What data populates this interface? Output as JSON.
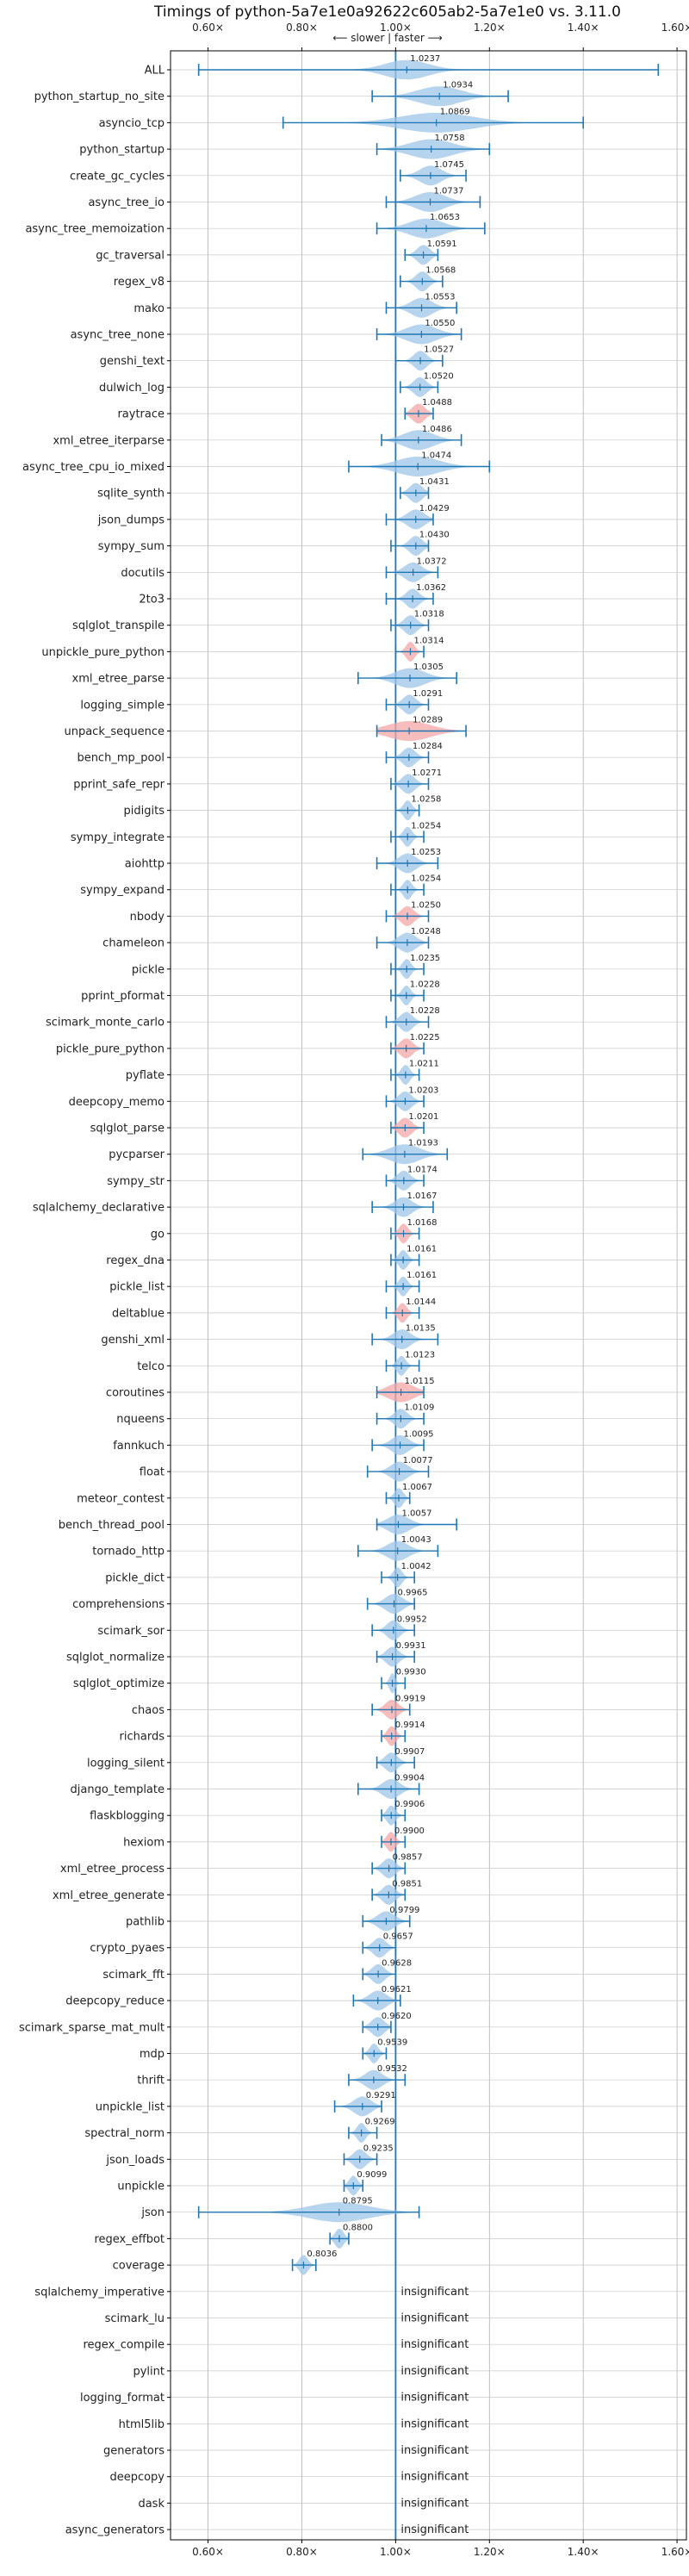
{
  "chart_data": {
    "type": "violin",
    "title": "Timings of python-5a7e1e0a92622c605ab2-5a7e1e0 vs. 3.11.0",
    "direction_label": "⟵ slower | faster ⟶",
    "xlim": [
      0.52,
      1.62
    ],
    "x_ticks": [
      "0.60×",
      "0.80×",
      "1.00×",
      "1.20×",
      "1.40×",
      "1.60×"
    ],
    "x_tick_values": [
      0.6,
      0.8,
      1.0,
      1.2,
      1.4,
      1.6
    ],
    "grid": true,
    "colors": {
      "normal": "#9fc5e8",
      "significant_slower": "#f4a6a6",
      "line": "#1f77b4"
    },
    "series": [
      {
        "name": "ALL",
        "value": 1.0237,
        "label": "1.0237",
        "min": 0.58,
        "max": 1.56,
        "spread": 0.1,
        "highlight": false
      },
      {
        "name": "python_startup_no_site",
        "value": 1.0934,
        "label": "1.0934",
        "min": 0.95,
        "max": 1.24,
        "spread": 0.1,
        "highlight": false
      },
      {
        "name": "asyncio_tcp",
        "value": 1.0869,
        "label": "1.0869",
        "min": 0.76,
        "max": 1.4,
        "spread": 0.17,
        "highlight": false
      },
      {
        "name": "python_startup",
        "value": 1.0758,
        "label": "1.0758",
        "min": 0.96,
        "max": 1.2,
        "spread": 0.1,
        "highlight": false
      },
      {
        "name": "create_gc_cycles",
        "value": 1.0745,
        "label": "1.0745",
        "min": 1.01,
        "max": 1.15,
        "spread": 0.05,
        "highlight": false
      },
      {
        "name": "async_tree_io",
        "value": 1.0737,
        "label": "1.0737",
        "min": 0.98,
        "max": 1.18,
        "spread": 0.07,
        "highlight": false
      },
      {
        "name": "async_tree_memoization",
        "value": 1.0653,
        "label": "1.0653",
        "min": 0.96,
        "max": 1.19,
        "spread": 0.08,
        "highlight": false
      },
      {
        "name": "gc_traversal",
        "value": 1.0591,
        "label": "1.0591",
        "min": 1.02,
        "max": 1.09,
        "spread": 0.03,
        "highlight": false
      },
      {
        "name": "regex_v8",
        "value": 1.0568,
        "label": "1.0568",
        "min": 1.01,
        "max": 1.1,
        "spread": 0.03,
        "highlight": false
      },
      {
        "name": "mako",
        "value": 1.0553,
        "label": "1.0553",
        "min": 0.98,
        "max": 1.13,
        "spread": 0.05,
        "highlight": false
      },
      {
        "name": "async_tree_none",
        "value": 1.055,
        "label": "1.0550",
        "min": 0.96,
        "max": 1.14,
        "spread": 0.07,
        "highlight": false
      },
      {
        "name": "genshi_text",
        "value": 1.0527,
        "label": "1.0527",
        "min": 1.0,
        "max": 1.1,
        "spread": 0.03,
        "highlight": false
      },
      {
        "name": "dulwich_log",
        "value": 1.052,
        "label": "1.0520",
        "min": 1.01,
        "max": 1.09,
        "spread": 0.03,
        "highlight": false
      },
      {
        "name": "raytrace",
        "value": 1.0488,
        "label": "1.0488",
        "min": 1.02,
        "max": 1.08,
        "spread": 0.03,
        "highlight": true
      },
      {
        "name": "xml_etree_iterparse",
        "value": 1.0486,
        "label": "1.0486",
        "min": 0.97,
        "max": 1.14,
        "spread": 0.07,
        "highlight": false
      },
      {
        "name": "async_tree_cpu_io_mixed",
        "value": 1.0474,
        "label": "1.0474",
        "min": 0.9,
        "max": 1.2,
        "spread": 0.1,
        "highlight": false
      },
      {
        "name": "sqlite_synth",
        "value": 1.0431,
        "label": "1.0431",
        "min": 1.01,
        "max": 1.07,
        "spread": 0.03,
        "highlight": false
      },
      {
        "name": "json_dumps",
        "value": 1.0429,
        "label": "1.0429",
        "min": 0.98,
        "max": 1.08,
        "spread": 0.04,
        "highlight": false
      },
      {
        "name": "sympy_sum",
        "value": 1.043,
        "label": "1.0430",
        "min": 0.99,
        "max": 1.07,
        "spread": 0.03,
        "highlight": false
      },
      {
        "name": "docutils",
        "value": 1.0372,
        "label": "1.0372",
        "min": 0.98,
        "max": 1.09,
        "spread": 0.04,
        "highlight": false
      },
      {
        "name": "2to3",
        "value": 1.0362,
        "label": "1.0362",
        "min": 0.98,
        "max": 1.08,
        "spread": 0.03,
        "highlight": false
      },
      {
        "name": "sqlglot_transpile",
        "value": 1.0318,
        "label": "1.0318",
        "min": 0.99,
        "max": 1.07,
        "spread": 0.03,
        "highlight": false
      },
      {
        "name": "unpickle_pure_python",
        "value": 1.0314,
        "label": "1.0314",
        "min": 1.0,
        "max": 1.06,
        "spread": 0.02,
        "highlight": true
      },
      {
        "name": "xml_etree_parse",
        "value": 1.0305,
        "label": "1.0305",
        "min": 0.92,
        "max": 1.13,
        "spread": 0.07,
        "highlight": false
      },
      {
        "name": "logging_simple",
        "value": 1.0291,
        "label": "1.0291",
        "min": 0.98,
        "max": 1.07,
        "spread": 0.03,
        "highlight": false
      },
      {
        "name": "unpack_sequence",
        "value": 1.0289,
        "label": "1.0289",
        "min": 0.96,
        "max": 1.15,
        "spread": 0.1,
        "highlight": true
      },
      {
        "name": "bench_mp_pool",
        "value": 1.0284,
        "label": "1.0284",
        "min": 0.98,
        "max": 1.07,
        "spread": 0.03,
        "highlight": false
      },
      {
        "name": "pprint_safe_repr",
        "value": 1.0271,
        "label": "1.0271",
        "min": 0.99,
        "max": 1.07,
        "spread": 0.03,
        "highlight": false
      },
      {
        "name": "pidigits",
        "value": 1.0258,
        "label": "1.0258",
        "min": 1.0,
        "max": 1.05,
        "spread": 0.02,
        "highlight": false
      },
      {
        "name": "sympy_integrate",
        "value": 1.0254,
        "label": "1.0254",
        "min": 0.99,
        "max": 1.06,
        "spread": 0.02,
        "highlight": false
      },
      {
        "name": "aiohttp",
        "value": 1.0253,
        "label": "1.0253",
        "min": 0.96,
        "max": 1.09,
        "spread": 0.04,
        "highlight": false
      },
      {
        "name": "sympy_expand",
        "value": 1.0254,
        "label": "1.0254",
        "min": 0.99,
        "max": 1.06,
        "spread": 0.02,
        "highlight": false
      },
      {
        "name": "nbody",
        "value": 1.025,
        "label": "1.0250",
        "min": 0.98,
        "max": 1.07,
        "spread": 0.03,
        "highlight": true
      },
      {
        "name": "chameleon",
        "value": 1.0248,
        "label": "1.0248",
        "min": 0.96,
        "max": 1.07,
        "spread": 0.04,
        "highlight": false
      },
      {
        "name": "pickle",
        "value": 1.0235,
        "label": "1.0235",
        "min": 0.99,
        "max": 1.06,
        "spread": 0.02,
        "highlight": false
      },
      {
        "name": "pprint_pformat",
        "value": 1.0228,
        "label": "1.0228",
        "min": 0.99,
        "max": 1.06,
        "spread": 0.02,
        "highlight": false
      },
      {
        "name": "scimark_monte_carlo",
        "value": 1.0228,
        "label": "1.0228",
        "min": 0.98,
        "max": 1.07,
        "spread": 0.03,
        "highlight": false
      },
      {
        "name": "pickle_pure_python",
        "value": 1.0225,
        "label": "1.0225",
        "min": 0.99,
        "max": 1.06,
        "spread": 0.03,
        "highlight": true
      },
      {
        "name": "pyflate",
        "value": 1.0211,
        "label": "1.0211",
        "min": 0.99,
        "max": 1.05,
        "spread": 0.02,
        "highlight": false
      },
      {
        "name": "deepcopy_memo",
        "value": 1.0203,
        "label": "1.0203",
        "min": 0.98,
        "max": 1.06,
        "spread": 0.03,
        "highlight": false
      },
      {
        "name": "sqlglot_parse",
        "value": 1.0201,
        "label": "1.0201",
        "min": 0.99,
        "max": 1.06,
        "spread": 0.03,
        "highlight": true
      },
      {
        "name": "pycparser",
        "value": 1.0193,
        "label": "1.0193",
        "min": 0.93,
        "max": 1.11,
        "spread": 0.07,
        "highlight": false
      },
      {
        "name": "sympy_str",
        "value": 1.0174,
        "label": "1.0174",
        "min": 0.98,
        "max": 1.06,
        "spread": 0.03,
        "highlight": false
      },
      {
        "name": "sqlalchemy_declarative",
        "value": 1.0167,
        "label": "1.0167",
        "min": 0.95,
        "max": 1.08,
        "spread": 0.04,
        "highlight": false
      },
      {
        "name": "go",
        "value": 1.0168,
        "label": "1.0168",
        "min": 0.99,
        "max": 1.05,
        "spread": 0.02,
        "highlight": true
      },
      {
        "name": "regex_dna",
        "value": 1.0161,
        "label": "1.0161",
        "min": 0.99,
        "max": 1.05,
        "spread": 0.02,
        "highlight": false
      },
      {
        "name": "pickle_list",
        "value": 1.0161,
        "label": "1.0161",
        "min": 0.98,
        "max": 1.05,
        "spread": 0.02,
        "highlight": false
      },
      {
        "name": "deltablue",
        "value": 1.0144,
        "label": "1.0144",
        "min": 0.98,
        "max": 1.05,
        "spread": 0.02,
        "highlight": true
      },
      {
        "name": "genshi_xml",
        "value": 1.0135,
        "label": "1.0135",
        "min": 0.95,
        "max": 1.09,
        "spread": 0.04,
        "highlight": false
      },
      {
        "name": "telco",
        "value": 1.0123,
        "label": "1.0123",
        "min": 0.98,
        "max": 1.05,
        "spread": 0.02,
        "highlight": false
      },
      {
        "name": "coroutines",
        "value": 1.0115,
        "label": "1.0115",
        "min": 0.96,
        "max": 1.06,
        "spread": 0.06,
        "highlight": true
      },
      {
        "name": "nqueens",
        "value": 1.0109,
        "label": "1.0109",
        "min": 0.96,
        "max": 1.06,
        "spread": 0.03,
        "highlight": false
      },
      {
        "name": "fannkuch",
        "value": 1.0095,
        "label": "1.0095",
        "min": 0.95,
        "max": 1.06,
        "spread": 0.04,
        "highlight": false
      },
      {
        "name": "float",
        "value": 1.0077,
        "label": "1.0077",
        "min": 0.94,
        "max": 1.07,
        "spread": 0.04,
        "highlight": false
      },
      {
        "name": "meteor_contest",
        "value": 1.0067,
        "label": "1.0067",
        "min": 0.98,
        "max": 1.03,
        "spread": 0.02,
        "highlight": false
      },
      {
        "name": "bench_thread_pool",
        "value": 1.0057,
        "label": "1.0057",
        "min": 0.96,
        "max": 1.13,
        "spread": 0.05,
        "highlight": false
      },
      {
        "name": "tornado_http",
        "value": 1.0043,
        "label": "1.0043",
        "min": 0.92,
        "max": 1.09,
        "spread": 0.05,
        "highlight": false
      },
      {
        "name": "pickle_dict",
        "value": 1.0042,
        "label": "1.0042",
        "min": 0.97,
        "max": 1.04,
        "spread": 0.02,
        "highlight": false
      },
      {
        "name": "comprehensions",
        "value": 0.9965,
        "label": "0.9965",
        "min": 0.94,
        "max": 1.04,
        "spread": 0.04,
        "highlight": false
      },
      {
        "name": "scimark_sor",
        "value": 0.9952,
        "label": "0.9952",
        "min": 0.95,
        "max": 1.04,
        "spread": 0.03,
        "highlight": false
      },
      {
        "name": "sqlglot_normalize",
        "value": 0.9931,
        "label": "0.9931",
        "min": 0.96,
        "max": 1.04,
        "spread": 0.03,
        "highlight": false
      },
      {
        "name": "sqlglot_optimize",
        "value": 0.993,
        "label": "0.9930",
        "min": 0.97,
        "max": 1.02,
        "spread": 0.01,
        "highlight": false
      },
      {
        "name": "chaos",
        "value": 0.9919,
        "label": "0.9919",
        "min": 0.95,
        "max": 1.03,
        "spread": 0.03,
        "highlight": true
      },
      {
        "name": "richards",
        "value": 0.9914,
        "label": "0.9914",
        "min": 0.97,
        "max": 1.02,
        "spread": 0.02,
        "highlight": true
      },
      {
        "name": "logging_silent",
        "value": 0.9907,
        "label": "0.9907",
        "min": 0.96,
        "max": 1.04,
        "spread": 0.03,
        "highlight": false
      },
      {
        "name": "django_template",
        "value": 0.9904,
        "label": "0.9904",
        "min": 0.92,
        "max": 1.05,
        "spread": 0.04,
        "highlight": false
      },
      {
        "name": "flaskblogging",
        "value": 0.9906,
        "label": "0.9906",
        "min": 0.97,
        "max": 1.02,
        "spread": 0.02,
        "highlight": false
      },
      {
        "name": "hexiom",
        "value": 0.99,
        "label": "0.9900",
        "min": 0.97,
        "max": 1.02,
        "spread": 0.02,
        "highlight": true
      },
      {
        "name": "xml_etree_process",
        "value": 0.9857,
        "label": "0.9857",
        "min": 0.95,
        "max": 1.02,
        "spread": 0.03,
        "highlight": false
      },
      {
        "name": "xml_etree_generate",
        "value": 0.9851,
        "label": "0.9851",
        "min": 0.95,
        "max": 1.02,
        "spread": 0.03,
        "highlight": false
      },
      {
        "name": "pathlib",
        "value": 0.9799,
        "label": "0.9799",
        "min": 0.93,
        "max": 1.03,
        "spread": 0.04,
        "highlight": false
      },
      {
        "name": "crypto_pyaes",
        "value": 0.9657,
        "label": "0.9657",
        "min": 0.93,
        "max": 1.0,
        "spread": 0.03,
        "highlight": false
      },
      {
        "name": "scimark_fft",
        "value": 0.9628,
        "label": "0.9628",
        "min": 0.93,
        "max": 1.0,
        "spread": 0.03,
        "highlight": false
      },
      {
        "name": "deepcopy_reduce",
        "value": 0.9621,
        "label": "0.9621",
        "min": 0.91,
        "max": 1.01,
        "spread": 0.04,
        "highlight": false
      },
      {
        "name": "scimark_sparse_mat_mult",
        "value": 0.962,
        "label": "0.9620",
        "min": 0.93,
        "max": 0.99,
        "spread": 0.03,
        "highlight": false
      },
      {
        "name": "mdp",
        "value": 0.9539,
        "label": "0.9539",
        "min": 0.93,
        "max": 0.98,
        "spread": 0.02,
        "highlight": false
      },
      {
        "name": "thrift",
        "value": 0.9532,
        "label": "0.9532",
        "min": 0.9,
        "max": 1.02,
        "spread": 0.04,
        "highlight": false
      },
      {
        "name": "unpickle_list",
        "value": 0.9291,
        "label": "0.9291",
        "min": 0.87,
        "max": 0.97,
        "spread": 0.04,
        "highlight": false
      },
      {
        "name": "spectral_norm",
        "value": 0.9269,
        "label": "0.9269",
        "min": 0.9,
        "max": 0.96,
        "spread": 0.02,
        "highlight": false
      },
      {
        "name": "json_loads",
        "value": 0.9235,
        "label": "0.9235",
        "min": 0.89,
        "max": 0.96,
        "spread": 0.03,
        "highlight": false
      },
      {
        "name": "unpickle",
        "value": 0.9099,
        "label": "0.9099",
        "min": 0.89,
        "max": 0.93,
        "spread": 0.02,
        "highlight": false
      },
      {
        "name": "json",
        "value": 0.8795,
        "label": "0.8795",
        "min": 0.58,
        "max": 1.05,
        "spread": 0.14,
        "highlight": false
      },
      {
        "name": "regex_effbot",
        "value": 0.88,
        "label": "0.8800",
        "min": 0.86,
        "max": 0.9,
        "spread": 0.02,
        "highlight": false
      },
      {
        "name": "coverage",
        "value": 0.8036,
        "label": "0.8036",
        "min": 0.78,
        "max": 0.83,
        "spread": 0.02,
        "highlight": false
      },
      {
        "name": "sqlalchemy_imperative",
        "value": null,
        "label": "insignificant",
        "highlight": false
      },
      {
        "name": "scimark_lu",
        "value": null,
        "label": "insignificant",
        "highlight": false
      },
      {
        "name": "regex_compile",
        "value": null,
        "label": "insignificant",
        "highlight": false
      },
      {
        "name": "pylint",
        "value": null,
        "label": "insignificant",
        "highlight": false
      },
      {
        "name": "logging_format",
        "value": null,
        "label": "insignificant",
        "highlight": false
      },
      {
        "name": "html5lib",
        "value": null,
        "label": "insignificant",
        "highlight": false
      },
      {
        "name": "generators",
        "value": null,
        "label": "insignificant",
        "highlight": false
      },
      {
        "name": "deepcopy",
        "value": null,
        "label": "insignificant",
        "highlight": false
      },
      {
        "name": "dask",
        "value": null,
        "label": "insignificant",
        "highlight": false
      },
      {
        "name": "async_generators",
        "value": null,
        "label": "insignificant",
        "highlight": false
      }
    ]
  }
}
